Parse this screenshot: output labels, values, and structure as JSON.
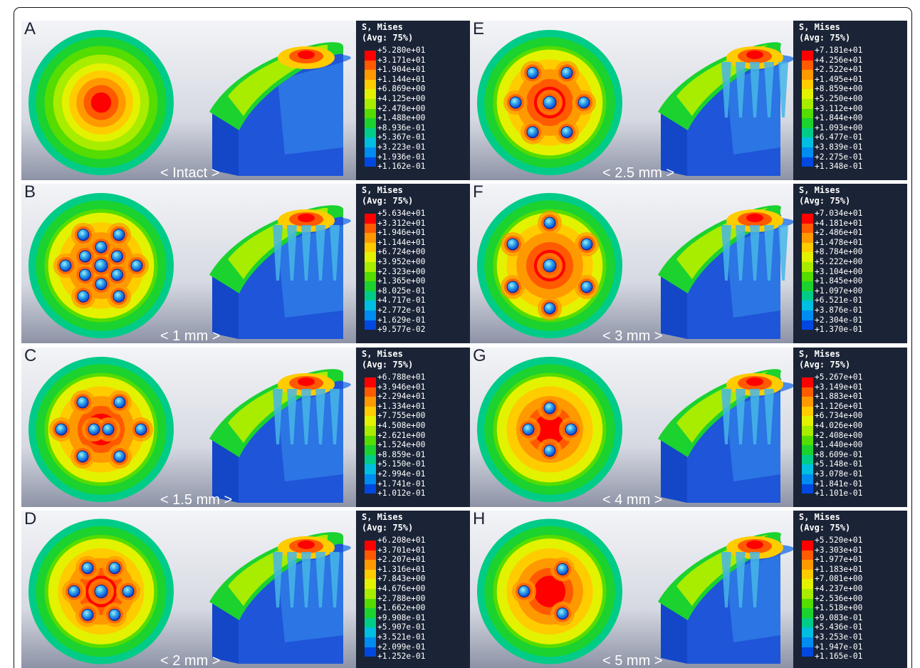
{
  "legend_title": [
    "S, Mises",
    "(Avg: 75%)"
  ],
  "contour_colors": [
    "#ff0000",
    "#ff5a00",
    "#ff9900",
    "#ffcc00",
    "#e3f200",
    "#a8ec00",
    "#55dc00",
    "#1bd22f",
    "#00cc88",
    "#00bfe0",
    "#008cf0",
    "#0048e0",
    "#0000d8"
  ],
  "panels": [
    {
      "letter": "A",
      "caption": "< Intact >",
      "holes": 0,
      "legend": [
        "+5.280e+01",
        "+3.171e+01",
        "+1.904e+01",
        "+1.144e+01",
        "+6.869e+00",
        "+4.125e+00",
        "+2.478e+00",
        "+1.488e+00",
        "+8.936e-01",
        "+5.367e-01",
        "+3.223e-01",
        "+1.936e-01",
        "+1.162e-01"
      ]
    },
    {
      "letter": "B",
      "caption": "< 1 mm >",
      "holes": 12,
      "legend": [
        "+5.634e+01",
        "+3.312e+01",
        "+1.946e+01",
        "+1.144e+01",
        "+6.724e+00",
        "+3.952e+00",
        "+2.323e+00",
        "+1.365e+00",
        "+8.025e-01",
        "+4.717e-01",
        "+2.772e-01",
        "+1.629e-01",
        "+9.577e-02"
      ]
    },
    {
      "letter": "C",
      "caption": "< 1.5 mm >",
      "holes": 8,
      "legend": [
        "+6.788e+01",
        "+3.946e+01",
        "+2.294e+01",
        "+1.334e+01",
        "+7.755e+00",
        "+4.508e+00",
        "+2.621e+00",
        "+1.524e+00",
        "+8.859e-01",
        "+5.150e-01",
        "+2.994e-01",
        "+1.741e-01",
        "+1.012e-01"
      ]
    },
    {
      "letter": "D",
      "caption": "< 2 mm >",
      "holes": 6,
      "legend": [
        "+6.208e+01",
        "+3.701e+01",
        "+2.207e+01",
        "+1.316e+01",
        "+7.843e+00",
        "+4.676e+00",
        "+2.788e+00",
        "+1.662e+00",
        "+9.908e-01",
        "+5.907e-01",
        "+3.521e-01",
        "+2.099e-01",
        "+1.252e-01"
      ]
    },
    {
      "letter": "E",
      "caption": "< 2.5 mm >",
      "holes": 6,
      "legend": [
        "+7.181e+01",
        "+4.256e+01",
        "+2.522e+01",
        "+1.495e+01",
        "+8.859e+00",
        "+5.250e+00",
        "+3.112e+00",
        "+1.844e+00",
        "+1.093e+00",
        "+6.477e-01",
        "+3.839e-01",
        "+2.275e-01",
        "+1.348e-01"
      ]
    },
    {
      "letter": "F",
      "caption": "< 3 mm >",
      "holes": 6,
      "legend": [
        "+7.034e+01",
        "+4.181e+01",
        "+2.486e+01",
        "+1.478e+01",
        "+8.784e+00",
        "+5.222e+00",
        "+3.104e+00",
        "+1.845e+00",
        "+1.097e+00",
        "+6.521e-01",
        "+3.876e-01",
        "+2.304e-01",
        "+1.370e-01"
      ]
    },
    {
      "letter": "G",
      "caption": "< 4 mm >",
      "holes": 4,
      "legend": [
        "+5.267e+01",
        "+3.149e+01",
        "+1.883e+01",
        "+1.126e+01",
        "+6.734e+00",
        "+4.026e+00",
        "+2.408e+00",
        "+1.440e+00",
        "+8.609e-01",
        "+5.148e-01",
        "+3.078e-01",
        "+1.841e-01",
        "+1.101e-01"
      ]
    },
    {
      "letter": "H",
      "caption": "< 5 mm >",
      "holes": 3,
      "legend": [
        "+5.520e+01",
        "+3.303e+01",
        "+1.977e+01",
        "+1.183e+01",
        "+7.081e+00",
        "+4.237e+00",
        "+2.536e+00",
        "+1.518e+00",
        "+9.083e-01",
        "+5.436e-01",
        "+3.253e-01",
        "+1.947e-01",
        "+1.165e-01"
      ]
    }
  ]
}
